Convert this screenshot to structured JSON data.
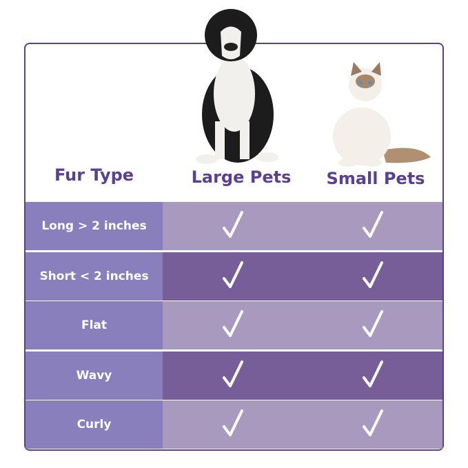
{
  "header": {
    "col0": "Fur Type",
    "col1": "Large Pets",
    "col2": "Small Pets"
  },
  "rows": [
    {
      "label": "Long > 2 inches",
      "large": true,
      "small": true
    },
    {
      "label": "Short < 2 inches",
      "large": true,
      "small": true
    },
    {
      "label": "Flat",
      "large": true,
      "small": true
    },
    {
      "label": "Wavy",
      "large": true,
      "small": true
    },
    {
      "label": "Curly",
      "large": true,
      "small": true
    }
  ],
  "colors": {
    "border": "#5a3f8c",
    "label_cell": "#8a7fbd",
    "row_light": "#a89abf",
    "row_dark": "#775e98",
    "heading": "#5b3f94"
  },
  "icons": {
    "check": "checkmark-icon",
    "large": "dog-photo",
    "small": "cat-photo"
  }
}
